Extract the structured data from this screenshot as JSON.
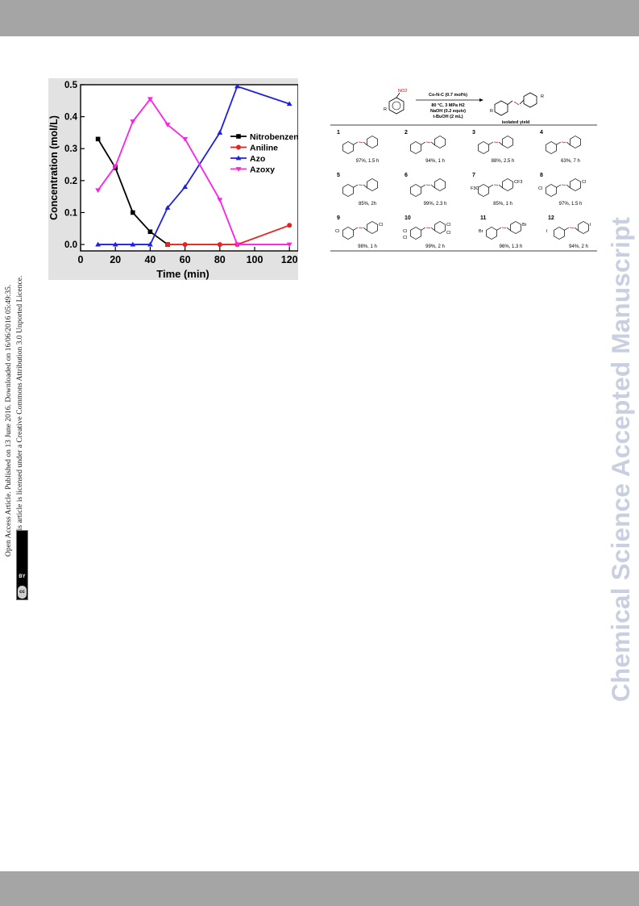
{
  "watermark": "Chemical Science Accepted Manuscript",
  "oa_notice": {
    "line1": "Open Access Article. Published on 13 June 2016. Downloaded on 16/06/2016 05:49:35.",
    "line2": "This article is licensed under a Creative Commons Attribution 3.0 Unported Licence.",
    "badge_cc": "cc",
    "badge_by": "BY"
  },
  "chart_data": {
    "type": "line",
    "xlabel": "Time (min)",
    "ylabel": "Concentration (mol/L)",
    "xlim": [
      0,
      125
    ],
    "ylim": [
      -0.02,
      0.5
    ],
    "xticks": [
      0,
      20,
      40,
      60,
      80,
      100,
      120
    ],
    "yticks": [
      0.0,
      0.1,
      0.2,
      0.3,
      0.4,
      0.5
    ],
    "ytick_labels": [
      "0.0",
      "0.1",
      "0.2",
      "0.3",
      "0.4",
      "0.5"
    ],
    "legend_position": "right",
    "series": [
      {
        "name": "Nitrobenzene",
        "color": "#000000",
        "marker": "square",
        "x": [
          10,
          20,
          30,
          40,
          50
        ],
        "y": [
          0.33,
          0.24,
          0.1,
          0.04,
          0.0
        ]
      },
      {
        "name": "Aniline",
        "color": "#e8231f",
        "marker": "circle",
        "x": [
          50,
          60,
          80,
          90,
          120
        ],
        "y": [
          0.0,
          0.0,
          0.0,
          0.0,
          0.06
        ]
      },
      {
        "name": "Azo",
        "color": "#1f1fe0",
        "marker": "triangle-up",
        "x": [
          10,
          20,
          30,
          40,
          50,
          60,
          80,
          90,
          120
        ],
        "y": [
          0.0,
          0.0,
          0.0,
          0.0,
          0.115,
          0.18,
          0.35,
          0.495,
          0.44
        ]
      },
      {
        "name": "Azoxy",
        "color": "#ff1fe8",
        "marker": "triangle-down",
        "x": [
          10,
          20,
          30,
          40,
          50,
          60,
          80,
          90,
          120
        ],
        "y": [
          0.17,
          0.245,
          0.385,
          0.455,
          0.375,
          0.33,
          0.14,
          0.0,
          0.0
        ]
      }
    ]
  },
  "scheme": {
    "reactant_label": "NO2",
    "reactant_r": "R",
    "conditions": [
      "Co-N-C (0.7 mol%)",
      "80 °C, 3 MPa H2",
      "NaOH (0.2 equiv)",
      "t-BuOH (2 mL)"
    ],
    "product_r": "R",
    "product_label": "isolated yield",
    "entries": [
      {
        "num": "1",
        "yield": "97%, 1.5 h"
      },
      {
        "num": "2",
        "yield": "94%, 1 h"
      },
      {
        "num": "3",
        "yield": "88%, 2.5 h"
      },
      {
        "num": "4",
        "yield": "63%, 7 h"
      },
      {
        "num": "5",
        "yield": "85%, 2h"
      },
      {
        "num": "6",
        "yield": "99%, 2.3 h"
      },
      {
        "num": "7",
        "yield": "85%, 1 h",
        "sub1": "F3C",
        "sub2": "CF3"
      },
      {
        "num": "8",
        "yield": "97%, 1.5 h",
        "sub1": "Cl",
        "sub2": "Cl"
      },
      {
        "num": "9",
        "yield": "98%, 1 h",
        "sub1": "Cl",
        "sub2": "Cl"
      },
      {
        "num": "10",
        "yield": "99%, 2 h",
        "sub1": "Cl",
        "sub2": "Cl",
        "sub3": "Cl",
        "sub4": "Cl"
      },
      {
        "num": "11",
        "yield": "96%, 1.3 h",
        "sub1": "Br",
        "sub2": "Br"
      },
      {
        "num": "12",
        "yield": "94%, 2 h",
        "sub1": "I",
        "sub2": "I"
      }
    ]
  }
}
